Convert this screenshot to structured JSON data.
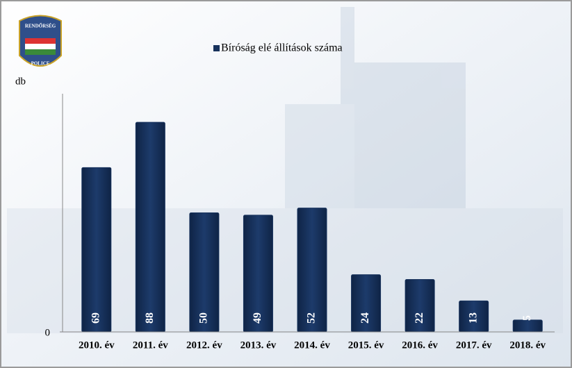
{
  "chart_data": {
    "type": "bar",
    "legend_label": "Bíróság elé állítások száma",
    "y_axis_label": "db",
    "logo": {
      "top": "RENDŐRSÉG",
      "bottom": "POLICE"
    },
    "categories": [
      "2010. év",
      "2011. év",
      "2012. év",
      "2013. év",
      "2014. év",
      "2015. év",
      "2016. év",
      "2017. év",
      "2018. év"
    ],
    "values": [
      69,
      88,
      50,
      49,
      52,
      24,
      22,
      13,
      5
    ],
    "color": "#17325c",
    "ylim": [
      0,
      100
    ],
    "yticks": [
      0
    ],
    "grid": false
  }
}
